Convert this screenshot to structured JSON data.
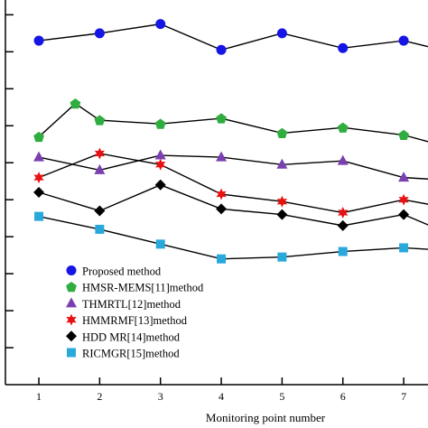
{
  "chart_data": {
    "type": "line",
    "title": "",
    "xlabel": "Monitoring point number",
    "ylabel": "",
    "x": [
      1,
      1.6,
      2,
      3,
      4,
      5,
      6,
      7,
      8
    ],
    "xticks": [
      1,
      2,
      3,
      4,
      5,
      6,
      7
    ],
    "xlim": [
      0.45,
      7.4
    ],
    "ylim": [
      0,
      10.4
    ],
    "yticks": [
      1,
      2,
      3,
      4,
      5,
      6,
      7,
      8,
      9,
      10
    ],
    "show_y_tick_labels": false,
    "grid": false,
    "legend_position": "bottom-left",
    "series": [
      {
        "name": "Proposed method",
        "color": "#1515e6",
        "marker": "circle",
        "points": [
          [
            1,
            9.3
          ],
          [
            2,
            9.5
          ],
          [
            3,
            9.75
          ],
          [
            4,
            9.05
          ],
          [
            5,
            9.5
          ],
          [
            6,
            9.1
          ],
          [
            7,
            9.3
          ],
          [
            8,
            8.9
          ]
        ]
      },
      {
        "name": "HMSR-MEMS[11]method",
        "color": "#2fad3f",
        "marker": "pentagon",
        "points": [
          [
            1,
            6.7
          ],
          [
            1.6,
            7.6
          ],
          [
            2,
            7.15
          ],
          [
            3,
            7.05
          ],
          [
            4,
            7.2
          ],
          [
            5,
            6.8
          ],
          [
            6,
            6.95
          ],
          [
            7,
            6.75
          ],
          [
            8,
            6.3
          ]
        ]
      },
      {
        "name": "THMRTL[12]method",
        "color": "#7a3fb0",
        "marker": "triangle",
        "points": [
          [
            1,
            6.15
          ],
          [
            2,
            5.8
          ],
          [
            3,
            6.2
          ],
          [
            4,
            6.15
          ],
          [
            5,
            5.95
          ],
          [
            6,
            6.05
          ],
          [
            7,
            5.6
          ],
          [
            8,
            5.5
          ]
        ]
      },
      {
        "name": "HMMRMF[13]method",
        "color": "#e81010",
        "marker": "star",
        "points": [
          [
            1,
            5.6
          ],
          [
            2,
            6.25
          ],
          [
            3,
            5.95
          ],
          [
            4,
            5.15
          ],
          [
            5,
            4.95
          ],
          [
            6,
            4.65
          ],
          [
            7,
            5.0
          ],
          [
            8,
            4.7
          ]
        ]
      },
      {
        "name": "HDD MR[14]method",
        "color": "#000000",
        "marker": "diamond",
        "points": [
          [
            1,
            5.2
          ],
          [
            2,
            4.7
          ],
          [
            3,
            5.4
          ],
          [
            4,
            4.75
          ],
          [
            5,
            4.6
          ],
          [
            6,
            4.3
          ],
          [
            7,
            4.6
          ],
          [
            8,
            3.9
          ]
        ]
      },
      {
        "name": "RICMGR[15]method",
        "color": "#29a8dc",
        "marker": "square",
        "points": [
          [
            1,
            4.55
          ],
          [
            2,
            4.2
          ],
          [
            3,
            3.8
          ],
          [
            4,
            3.4
          ],
          [
            5,
            3.45
          ],
          [
            6,
            3.6
          ],
          [
            7,
            3.7
          ],
          [
            8,
            3.6
          ]
        ]
      }
    ]
  }
}
